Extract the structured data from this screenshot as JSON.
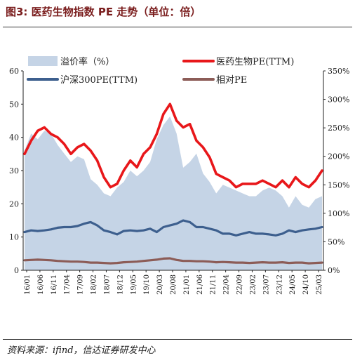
{
  "header": {
    "title": "图3: 医药生物指数 PE 走势（单位：倍）"
  },
  "footer": {
    "source": "资料来源：ifind，信达证券研发中心"
  },
  "chart_data": {
    "type": "line",
    "left_axis": {
      "ylim": [
        0,
        60
      ],
      "ticks": [
        "0",
        "10",
        "20",
        "30",
        "40",
        "50",
        "60"
      ]
    },
    "right_axis": {
      "ylim": [
        0,
        350
      ],
      "ticks": [
        "0%",
        "50%",
        "100%",
        "150%",
        "200%",
        "250%",
        "300%",
        "350%"
      ]
    },
    "x_ticks": [
      "16/01",
      "16/06",
      "16/11",
      "17/04",
      "17/09",
      "18/02",
      "18/07",
      "18/12",
      "19/05",
      "19/10",
      "20/03",
      "20/08",
      "21/01",
      "21/06",
      "21/11",
      "22/04",
      "22/09",
      "23/02",
      "23/07",
      "23/12",
      "24/05",
      "24/10",
      "25/03"
    ],
    "legend": [
      {
        "label": "溢价率（%）",
        "color": "#c5d4e6",
        "kind": "area"
      },
      {
        "label": "医药生物PE(TTM)",
        "color": "#e8171a",
        "kind": "line"
      },
      {
        "label": "沪深300PE(TTM)",
        "color": "#3d5f8e",
        "kind": "line"
      },
      {
        "label": "相对PE",
        "color": "#8c5c57",
        "kind": "line"
      }
    ],
    "x": [
      "16/01",
      "16/03",
      "16/06",
      "16/09",
      "16/11",
      "17/02",
      "17/04",
      "17/07",
      "17/09",
      "17/12",
      "18/02",
      "18/05",
      "18/07",
      "18/10",
      "18/12",
      "19/03",
      "19/05",
      "19/08",
      "19/10",
      "20/01",
      "20/03",
      "20/06",
      "20/08",
      "20/10",
      "21/01",
      "21/04",
      "21/06",
      "21/09",
      "21/11",
      "22/02",
      "22/04",
      "22/07",
      "22/09",
      "22/12",
      "23/02",
      "23/05",
      "23/07",
      "23/10",
      "23/12",
      "24/03",
      "24/05",
      "24/08",
      "24/10",
      "25/01",
      "25/03",
      "25/06"
    ],
    "series": [
      {
        "name": "医药生物PE(TTM)",
        "axis": "left",
        "color": "#e8171a",
        "values": [
          35,
          39,
          42,
          43,
          41,
          40,
          38,
          35,
          37,
          38,
          36,
          33,
          28,
          25,
          26,
          30,
          33,
          31,
          35,
          37,
          41,
          47,
          50,
          45,
          43,
          44,
          39,
          37,
          34,
          29,
          28,
          27,
          25,
          26,
          26,
          26,
          27,
          26,
          25,
          27,
          25,
          28,
          26,
          25,
          27,
          30
        ]
      },
      {
        "name": "沪深300PE(TTM)",
        "axis": "left",
        "color": "#3d5f8e",
        "values": [
          11.5,
          12,
          11.8,
          12,
          12.3,
          12.8,
          13,
          13,
          13.3,
          14,
          14.5,
          13.5,
          12,
          11.5,
          10.8,
          11.8,
          12,
          11.8,
          12,
          12.5,
          11.5,
          13,
          13.5,
          14,
          15,
          14.5,
          13,
          13,
          12.5,
          12,
          11,
          11,
          10.5,
          11,
          11.5,
          11,
          11,
          10.8,
          10.5,
          11,
          12,
          11.5,
          12,
          12.3,
          12.5,
          13
        ]
      },
      {
        "name": "相对PE",
        "axis": "left",
        "color": "#8c5c57",
        "values": [
          3,
          3.1,
          3.2,
          3.1,
          3,
          2.8,
          2.7,
          2.6,
          2.6,
          2.5,
          2.3,
          2.3,
          2.2,
          2.1,
          2.2,
          2.4,
          2.5,
          2.6,
          2.8,
          3,
          3.2,
          3.5,
          3.6,
          3.1,
          2.8,
          2.8,
          2.7,
          2.7,
          2.6,
          2.4,
          2.5,
          2.4,
          2.3,
          2.3,
          2.2,
          2.3,
          2.4,
          2.3,
          2.3,
          2.4,
          2.2,
          2.3,
          2.3,
          2.1,
          2.2,
          2.3
        ]
      },
      {
        "name": "溢价率（%）",
        "axis": "right",
        "color": "#c5d4e6",
        "values": [
          210,
          240,
          230,
          245,
          240,
          220,
          205,
          190,
          200,
          195,
          160,
          150,
          135,
          130,
          145,
          155,
          175,
          165,
          175,
          190,
          230,
          255,
          270,
          240,
          180,
          190,
          205,
          170,
          155,
          135,
          150,
          145,
          140,
          135,
          130,
          130,
          140,
          145,
          140,
          130,
          110,
          130,
          115,
          110,
          125,
          130
        ]
      }
    ]
  }
}
